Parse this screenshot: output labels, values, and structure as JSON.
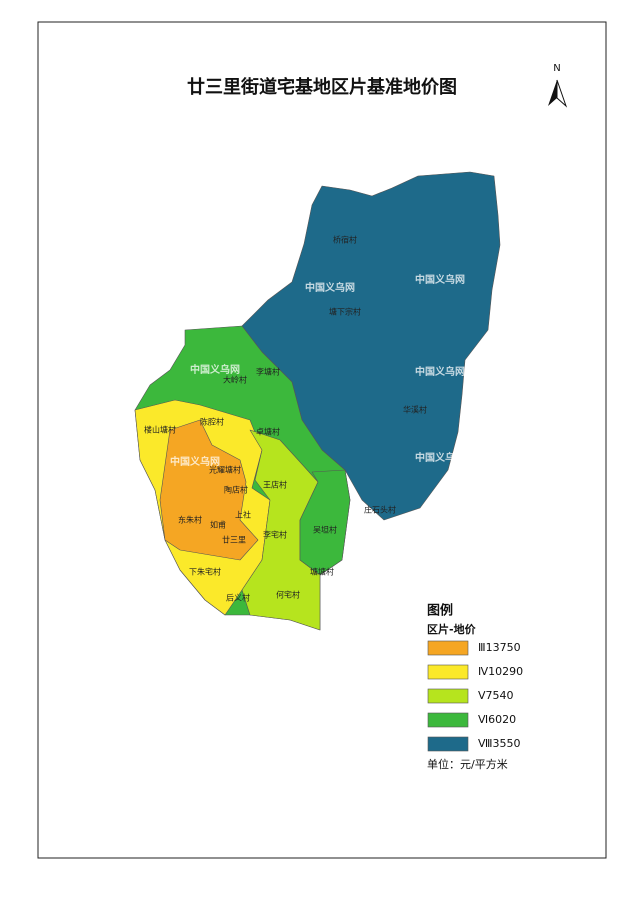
{
  "title": "廿三里街道宅基地区片基准地价图",
  "north": "N",
  "legend": {
    "title": "图例",
    "subtitle": "区片-地价",
    "items": [
      {
        "label": "Ⅲ13750",
        "color": "#f5a623"
      },
      {
        "label": "Ⅳ10290",
        "color": "#fbe92a"
      },
      {
        "label": "Ⅴ7540",
        "color": "#b6e41e"
      },
      {
        "label": "Ⅵ6020",
        "color": "#3cb83c"
      },
      {
        "label": "Ⅷ3550",
        "color": "#1e6a8a"
      }
    ],
    "unit": "单位：元/平方米"
  },
  "places": [
    "桥宿村",
    "塘下宗村",
    "华溪村",
    "庄石头村",
    "大岭村",
    "李塘村",
    "卓塘村",
    "陈腔村",
    "楼山塘村",
    "王店村",
    "东朱村",
    "光耀塘村",
    "陶店村",
    "上社",
    "如甫",
    "廿三里",
    "李宅村",
    "下朱宅村",
    "后义村",
    "何宅村",
    "吴坦村",
    "塘塘村"
  ],
  "watermarks": [
    "中国义乌网",
    "中国义乌网",
    "中国义乌网",
    "中国义乌网",
    "中国义乌网",
    "中国义乌网"
  ]
}
